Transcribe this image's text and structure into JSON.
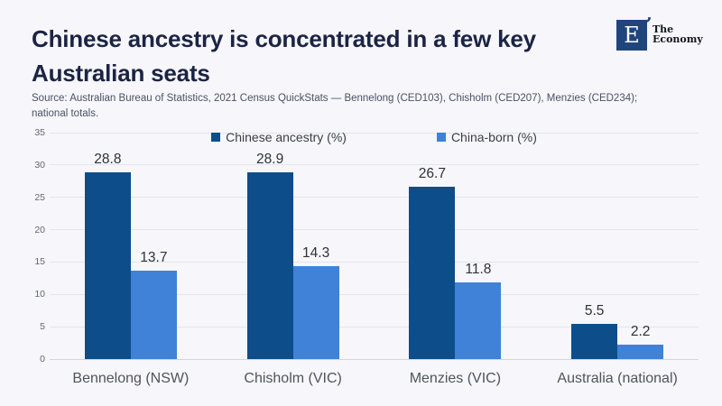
{
  "header": {
    "title": "Chinese ancestry is concentrated in a few key Australian seats",
    "source": "Source: Australian Bureau of Statistics, 2021 Census QuickStats — Bennelong (CED103), Chisholm (CED207), Menzies (CED234); national totals.",
    "logo": {
      "mark": "E",
      "name_line1": "The",
      "name_line2": "Economy"
    }
  },
  "colors": {
    "background": "#f6f6fb",
    "title_navy": "#1c2444",
    "logo_navy": "#20457c",
    "bar_dark_blue": "#0d4d8a",
    "bar_light_blue": "#3f82d8"
  },
  "chart_data": {
    "type": "bar",
    "title": "Chinese ancestry is concentrated in a few key Australian seats",
    "xlabel": "",
    "ylabel": "",
    "categories": [
      "Bennelong (NSW)",
      "Chisholm (VIC)",
      "Menzies (VIC)",
      "Australia (national)"
    ],
    "series": [
      {
        "name": "Chinese ancestry (%)",
        "color": "#0d4d8a",
        "values": [
          28.8,
          28.9,
          26.7,
          5.5
        ]
      },
      {
        "name": "China-born (%)",
        "color": "#3f82d8",
        "values": [
          13.7,
          14.3,
          11.8,
          2.2
        ]
      }
    ],
    "ylim": [
      0,
      35
    ],
    "ytick_step": 5,
    "yticks": [
      0,
      5,
      10,
      15,
      20,
      25,
      30,
      35
    ],
    "grid": true,
    "legend_position": "top",
    "value_labels": true
  }
}
